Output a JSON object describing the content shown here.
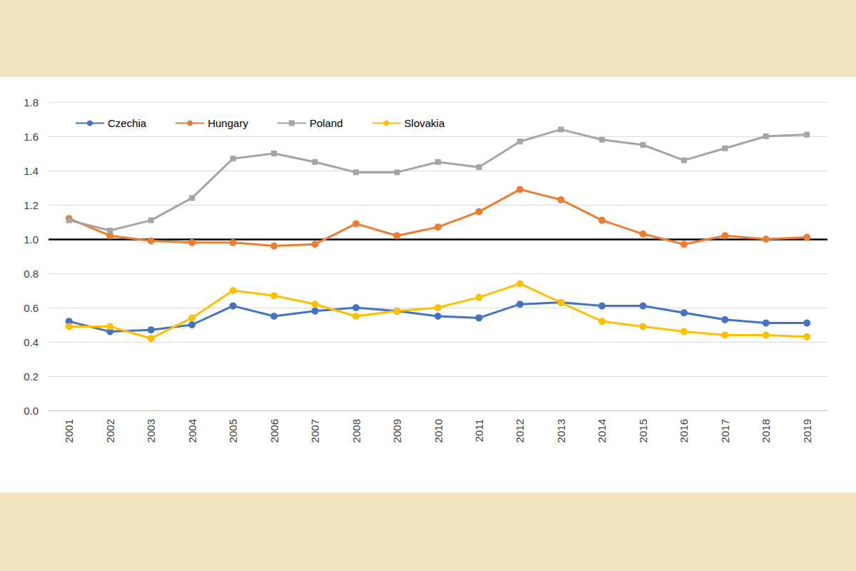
{
  "chart_data": {
    "type": "line",
    "categories": [
      "2001",
      "2002",
      "2003",
      "2004",
      "2005",
      "2006",
      "2007",
      "2008",
      "2009",
      "2010",
      "2011",
      "2012",
      "2013",
      "2014",
      "2015",
      "2016",
      "2017",
      "2018",
      "2019"
    ],
    "series": [
      {
        "name": "Czechia",
        "color": "#4472c4",
        "marker": "circle",
        "line_style": "solid",
        "values": [
          0.52,
          0.46,
          0.47,
          0.5,
          0.61,
          0.55,
          0.58,
          0.6,
          0.58,
          0.55,
          0.54,
          0.62,
          0.63,
          0.61,
          0.61,
          0.57,
          0.53,
          0.51,
          0.51
        ]
      },
      {
        "name": "Hungary",
        "color": "#ed7d31",
        "marker": "circle",
        "line_style": "solid",
        "values": [
          1.12,
          1.02,
          0.99,
          0.98,
          0.98,
          0.96,
          0.97,
          1.09,
          1.02,
          1.07,
          1.16,
          1.29,
          1.23,
          1.11,
          1.03,
          0.97,
          1.02,
          1.0,
          1.01
        ]
      },
      {
        "name": "Poland",
        "color": "#a5a5a5",
        "marker": "square",
        "line_style": "solid",
        "values": [
          1.11,
          1.05,
          1.11,
          1.24,
          1.47,
          1.5,
          1.45,
          1.39,
          1.39,
          1.45,
          1.42,
          1.57,
          1.64,
          1.58,
          1.55,
          1.46,
          1.53,
          1.6,
          1.61
        ]
      },
      {
        "name": "Slovakia",
        "color": "#ffc000",
        "marker": "circle",
        "line_style": "solid",
        "values": [
          0.49,
          0.49,
          0.42,
          0.54,
          0.7,
          0.67,
          0.62,
          0.55,
          0.58,
          0.6,
          0.66,
          0.74,
          0.63,
          0.52,
          0.49,
          0.46,
          0.44,
          0.44,
          0.43
        ]
      }
    ],
    "ylim": [
      0,
      1.8
    ],
    "yticks": [
      {
        "value": 0,
        "label": "0.0"
      },
      0.2,
      0.4,
      0.6,
      0.8,
      {
        "value": 1,
        "label": "1.0"
      },
      1.2,
      1.4,
      1.6,
      1.8
    ],
    "hline": 1,
    "grid": true,
    "legend": "top-left"
  }
}
